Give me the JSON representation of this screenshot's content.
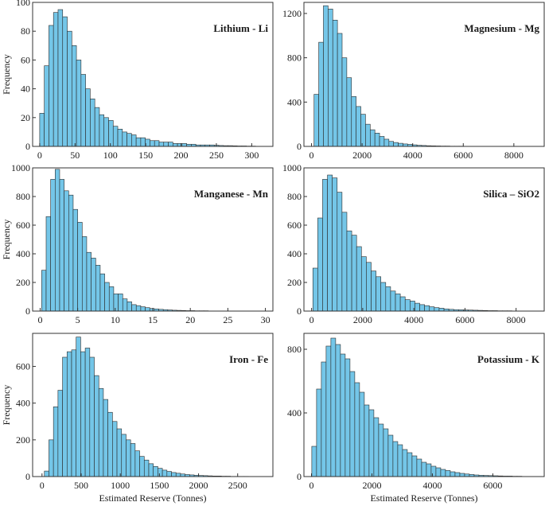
{
  "figure": {
    "ylabel": "Frequency",
    "xlabel": "Estimated Reserve (Tonnes)",
    "bar_color": "#74c6e8",
    "edge_color": "#2b2b2b"
  },
  "chart_data": [
    {
      "type": "bar",
      "title": "Lithium - Li",
      "xlim": [
        -10,
        330
      ],
      "ylim": [
        0,
        100
      ],
      "xticks": [
        0,
        50,
        100,
        150,
        200,
        250,
        300
      ],
      "yticks": [
        0,
        20,
        40,
        60,
        80,
        100
      ],
      "bin_start": 0,
      "bin_width": 6.5,
      "values": [
        23,
        56,
        84,
        93,
        95,
        90,
        80,
        70,
        60,
        50,
        40,
        33,
        27,
        22,
        20,
        18,
        14,
        12,
        10,
        9,
        8,
        6,
        6,
        5,
        4,
        4,
        3,
        3,
        3,
        2,
        2,
        2,
        1.5,
        1.5,
        1,
        1,
        1,
        1,
        0.8,
        0.6,
        0.5,
        0.5,
        0.4,
        0.3,
        0.3,
        0.2,
        0.2,
        0.1
      ]
    },
    {
      "type": "bar",
      "title": "Magnesium - Mg",
      "xlim": [
        -300,
        9200
      ],
      "ylim": [
        0,
        1300
      ],
      "xticks": [
        0,
        2000,
        4000,
        6000,
        8000
      ],
      "yticks": [
        0,
        400,
        800,
        1200
      ],
      "bin_start": 100,
      "bin_width": 185,
      "values": [
        470,
        940,
        1270,
        1240,
        1140,
        1020,
        800,
        620,
        450,
        360,
        290,
        200,
        150,
        120,
        90,
        65,
        45,
        35,
        28,
        22,
        18,
        14,
        10,
        8,
        6,
        5,
        4,
        3,
        3,
        2,
        2,
        2,
        1,
        1,
        1,
        1,
        1
      ]
    },
    {
      "type": "bar",
      "title": "Manganese - Mn",
      "xlim": [
        -1,
        31
      ],
      "ylim": [
        0,
        1000
      ],
      "xticks": [
        0,
        5,
        10,
        15,
        20,
        25,
        30
      ],
      "yticks": [
        0,
        200,
        400,
        600,
        800,
        1000
      ],
      "bin_start": 0.2,
      "bin_width": 0.6,
      "values": [
        285,
        660,
        920,
        990,
        920,
        840,
        810,
        710,
        620,
        520,
        410,
        370,
        320,
        260,
        200,
        170,
        120,
        120,
        85,
        65,
        45,
        38,
        30,
        24,
        18,
        15,
        12,
        10,
        8,
        6,
        5,
        4,
        3,
        3,
        2,
        2,
        2,
        1,
        1,
        1
      ]
    },
    {
      "type": "bar",
      "title": "Silica – SiO2",
      "xlim": [
        -300,
        9100
      ],
      "ylim": [
        0,
        1000
      ],
      "xticks": [
        0,
        2000,
        4000,
        6000,
        8000
      ],
      "yticks": [
        0,
        200,
        400,
        600,
        800,
        1000
      ],
      "bin_start": 50,
      "bin_width": 190,
      "values": [
        300,
        650,
        920,
        950,
        930,
        830,
        690,
        560,
        530,
        450,
        380,
        340,
        280,
        240,
        200,
        170,
        140,
        120,
        100,
        80,
        70,
        55,
        45,
        38,
        30,
        24,
        20,
        15,
        12,
        10,
        9,
        8,
        7,
        6,
        5,
        4,
        3,
        3,
        2,
        2,
        2
      ]
    },
    {
      "type": "bar",
      "title": "Iron - Fe",
      "xlim": [
        -120,
        2950
      ],
      "ylim": [
        0,
        780
      ],
      "xticks": [
        0,
        500,
        1000,
        1500,
        2000,
        2500
      ],
      "yticks": [
        0,
        200,
        400,
        600
      ],
      "bin_start": 30,
      "bin_width": 58,
      "values": [
        30,
        200,
        380,
        470,
        650,
        680,
        690,
        760,
        680,
        700,
        650,
        550,
        480,
        420,
        350,
        300,
        260,
        230,
        200,
        180,
        140,
        110,
        90,
        70,
        55,
        45,
        35,
        28,
        22,
        18,
        14,
        11,
        9,
        7,
        6,
        5,
        4,
        3,
        3,
        2,
        2,
        1,
        1,
        1,
        1
      ]
    },
    {
      "type": "bar",
      "title": "Potassium - K",
      "xlim": [
        -250,
        7700
      ],
      "ylim": [
        0,
        900
      ],
      "xticks": [
        0,
        2000,
        4000,
        6000
      ],
      "yticks": [
        0,
        400,
        800
      ],
      "bin_start": 10,
      "bin_width": 158,
      "values": [
        190,
        550,
        720,
        820,
        870,
        830,
        770,
        740,
        660,
        590,
        530,
        450,
        420,
        370,
        330,
        300,
        260,
        220,
        200,
        170,
        150,
        130,
        110,
        90,
        80,
        65,
        55,
        45,
        38,
        30,
        25,
        20,
        16,
        13,
        10,
        8,
        7,
        6,
        5,
        4,
        3,
        3,
        2,
        2,
        1,
        1
      ]
    }
  ]
}
